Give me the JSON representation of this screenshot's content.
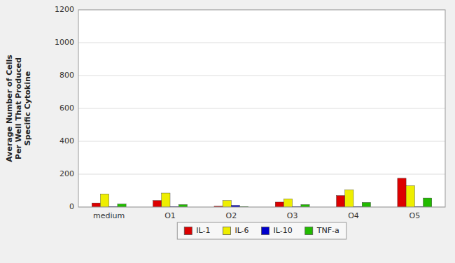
{
  "chart_data": {
    "type": "bar",
    "ylabel": "Average Number of Cells\nPer Well That Produced\nSpecific Cytokine",
    "categories": [
      "medium",
      "O1",
      "O2",
      "O3",
      "O4",
      "O5"
    ],
    "series": [
      {
        "name": "IL-1",
        "color": "#dd0000",
        "values": [
          25,
          40,
          5,
          30,
          70,
          175
        ]
      },
      {
        "name": "IL-6",
        "color": "#eeee00",
        "values": [
          80,
          85,
          40,
          50,
          105,
          130
        ]
      },
      {
        "name": "IL-10",
        "color": "#0000cc",
        "values": [
          3,
          3,
          10,
          3,
          3,
          3
        ]
      },
      {
        "name": "TNF-a",
        "color": "#22bb00",
        "values": [
          18,
          15,
          3,
          15,
          28,
          55
        ]
      }
    ],
    "ylim": [
      0,
      1200
    ],
    "yticks": [
      0,
      200,
      400,
      600,
      800,
      1000,
      1200
    ],
    "grid": true,
    "legend": "bottom"
  }
}
